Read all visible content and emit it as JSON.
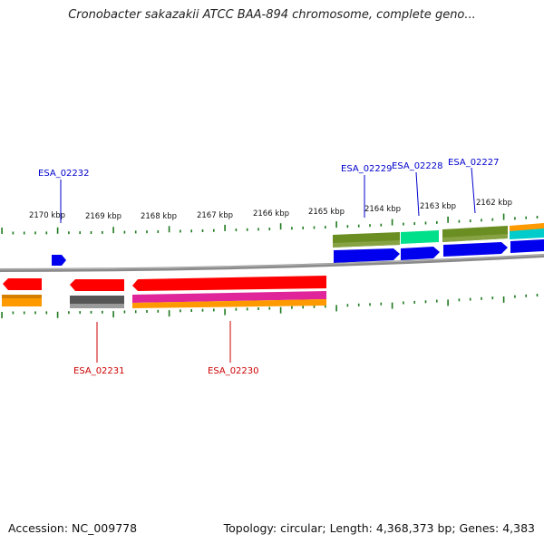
{
  "title": "Cronobacter sakazakii ATCC BAA-894 chromosome, complete geno...",
  "footer": {
    "accession": "Accession: NC_009778",
    "topology": "Topology: circular; Length: 4,368,373 bp; Genes: 4,383"
  },
  "colors": {
    "backbone": "#808080",
    "tick": "#1f7a1f",
    "forward_label": "#0000cc",
    "reverse_label": "#cc0000",
    "gene_forward": "#0000ee",
    "gene_reverse": "#ff0000",
    "olive": "#6b8e23",
    "spring_green": "#00e08a",
    "orange": "#ff9900",
    "cyan": "#00cccc",
    "dark_gray": "#555555",
    "magenta": "#e0259a"
  },
  "scale": {
    "ticks": [
      "2170 kbp",
      "2169 kbp",
      "2168 kbp",
      "2167 kbp",
      "2166 kbp",
      "2165 kbp",
      "2164 kbp",
      "2163 kbp",
      "2162 kbp"
    ]
  },
  "genes": {
    "forward": [
      "ESA_02232",
      "ESA_02229",
      "ESA_02228",
      "ESA_02227"
    ],
    "reverse": [
      "ESA_02231",
      "ESA_02230"
    ]
  }
}
